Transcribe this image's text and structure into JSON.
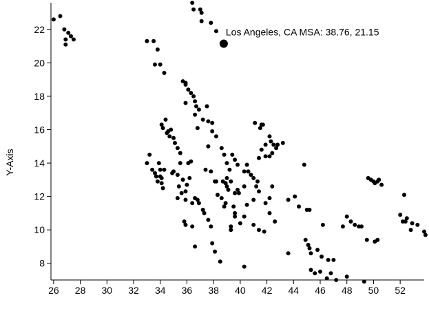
{
  "chart_data": {
    "type": "scatter",
    "ylabel": "Y-Axis",
    "xlim": [
      25.8,
      53.8
    ],
    "ylim": [
      7.0,
      23.6
    ],
    "x_ticks": [
      26,
      28,
      30,
      32,
      34,
      36,
      38,
      40,
      42,
      44,
      46,
      48,
      50,
      52
    ],
    "y_ticks": [
      8,
      10,
      12,
      14,
      16,
      18,
      20,
      22
    ],
    "x_tick_labels": [
      "26",
      "28",
      "30",
      "32",
      "34",
      "36",
      "38",
      "40",
      "42",
      "44",
      "46",
      "48",
      "50",
      "52"
    ],
    "y_tick_labels": [
      "8",
      "10",
      "12",
      "14",
      "16",
      "18",
      "20",
      "22"
    ],
    "grid": false,
    "highlight": {
      "x": 38.76,
      "y": 21.15,
      "label": "Los Angeles, CA MSA: 38.76, 21.15"
    },
    "points": [
      [
        26.0,
        22.6
      ],
      [
        26.5,
        22.8
      ],
      [
        26.8,
        22.0
      ],
      [
        26.9,
        21.4
      ],
      [
        26.9,
        21.1
      ],
      [
        27.1,
        21.8
      ],
      [
        27.3,
        21.6
      ],
      [
        27.5,
        21.4
      ],
      [
        33.0,
        21.3
      ],
      [
        33.5,
        21.3
      ],
      [
        33.8,
        20.8
      ],
      [
        33.6,
        19.9
      ],
      [
        34.0,
        19.9
      ],
      [
        34.3,
        19.4
      ],
      [
        36.4,
        23.6
      ],
      [
        36.5,
        23.2
      ],
      [
        37.0,
        23.2
      ],
      [
        37.1,
        23.0
      ],
      [
        37.1,
        22.5
      ],
      [
        37.8,
        22.4
      ],
      [
        38.2,
        21.9
      ],
      [
        35.7,
        18.9
      ],
      [
        35.9,
        18.8
      ],
      [
        35.9,
        18.7
      ],
      [
        35.9,
        17.6
      ],
      [
        36.1,
        18.4
      ],
      [
        36.3,
        18.2
      ],
      [
        36.5,
        18.0
      ],
      [
        36.6,
        17.7
      ],
      [
        36.7,
        17.4
      ],
      [
        36.6,
        16.9
      ],
      [
        36.9,
        17.2
      ],
      [
        36.8,
        16.1
      ],
      [
        37.2,
        16.6
      ],
      [
        37.5,
        17.4
      ],
      [
        37.6,
        16.5
      ],
      [
        37.9,
        16.4
      ],
      [
        37.9,
        15.9
      ],
      [
        38.2,
        15.6
      ],
      [
        34.1,
        16.3
      ],
      [
        34.2,
        16.1
      ],
      [
        34.4,
        16.6
      ],
      [
        34.5,
        15.8
      ],
      [
        34.6,
        15.9
      ],
      [
        34.7,
        15.6
      ],
      [
        34.8,
        16.0
      ],
      [
        35.0,
        15.5
      ],
      [
        35.1,
        15.2
      ],
      [
        35.3,
        14.9
      ],
      [
        35.5,
        14.6
      ],
      [
        35.5,
        14.0
      ],
      [
        36.3,
        14.1
      ],
      [
        33.0,
        14.0
      ],
      [
        33.2,
        14.5
      ],
      [
        33.4,
        13.6
      ],
      [
        33.6,
        13.4
      ],
      [
        33.7,
        13.2
      ],
      [
        33.8,
        12.9
      ],
      [
        33.9,
        14.0
      ],
      [
        34.0,
        13.6
      ],
      [
        34.0,
        13.2
      ],
      [
        34.1,
        13.1
      ],
      [
        34.1,
        12.8
      ],
      [
        34.2,
        12.5
      ],
      [
        34.3,
        13.6
      ],
      [
        34.9,
        13.4
      ],
      [
        35.0,
        13.5
      ],
      [
        35.3,
        13.3
      ],
      [
        35.4,
        12.6
      ],
      [
        35.6,
        12.2
      ],
      [
        35.7,
        13.0
      ],
      [
        35.9,
        12.3
      ],
      [
        35.3,
        11.9
      ],
      [
        35.9,
        11.8
      ],
      [
        36.0,
        12.7
      ],
      [
        36.1,
        14.0
      ],
      [
        36.2,
        13.1
      ],
      [
        36.4,
        11.6
      ],
      [
        36.6,
        11.9
      ],
      [
        36.8,
        11.8
      ],
      [
        36.9,
        11.6
      ],
      [
        37.2,
        11.2
      ],
      [
        37.3,
        11.0
      ],
      [
        37.6,
        10.6
      ],
      [
        37.8,
        10.2
      ],
      [
        35.8,
        10.5
      ],
      [
        35.9,
        10.3
      ],
      [
        36.4,
        10.2
      ],
      [
        36.6,
        9.0
      ],
      [
        37.9,
        9.2
      ],
      [
        38.1,
        8.7
      ],
      [
        38.5,
        8.1
      ],
      [
        37.6,
        15.0
      ],
      [
        38.6,
        14.9
      ],
      [
        38.8,
        14.5
      ],
      [
        39.0,
        14.0
      ],
      [
        39.2,
        13.6
      ],
      [
        39.4,
        14.5
      ],
      [
        39.6,
        14.2
      ],
      [
        39.8,
        13.9
      ],
      [
        39.0,
        13.1
      ],
      [
        38.9,
        12.8
      ],
      [
        39.3,
        12.9
      ],
      [
        39.0,
        12.6
      ],
      [
        38.7,
        12.9
      ],
      [
        38.1,
        12.9
      ],
      [
        38.6,
        11.9
      ],
      [
        38.8,
        11.4
      ],
      [
        39.1,
        12.4
      ],
      [
        39.5,
        11.4
      ],
      [
        39.6,
        11.0
      ],
      [
        39.8,
        12.4
      ],
      [
        40.3,
        12.6
      ],
      [
        40.3,
        13.5
      ],
      [
        40.5,
        13.9
      ],
      [
        40.6,
        13.5
      ],
      [
        40.8,
        13.3
      ],
      [
        41.0,
        13.1
      ],
      [
        41.2,
        12.6
      ],
      [
        41.4,
        12.3
      ],
      [
        41.0,
        11.8
      ],
      [
        41.3,
        12.9
      ],
      [
        40.5,
        11.5
      ],
      [
        40.3,
        10.8
      ],
      [
        40.0,
        10.4
      ],
      [
        39.3,
        10.0
      ],
      [
        39.3,
        10.2
      ],
      [
        39.6,
        10.8
      ],
      [
        41.0,
        10.3
      ],
      [
        41.4,
        10.0
      ],
      [
        41.8,
        9.9
      ],
      [
        41.9,
        11.6
      ],
      [
        42.2,
        11.9
      ],
      [
        42.4,
        12.6
      ],
      [
        42.2,
        11.0
      ],
      [
        42.6,
        10.5
      ],
      [
        40.3,
        7.8
      ],
      [
        37.4,
        13.6
      ],
      [
        37.8,
        13.5
      ],
      [
        38.3,
        12.1
      ],
      [
        38.2,
        12.9
      ],
      [
        38.9,
        11.6
      ],
      [
        39.6,
        12.2
      ],
      [
        39.9,
        12.2
      ],
      [
        41.1,
        16.4
      ],
      [
        41.5,
        16.1
      ],
      [
        41.6,
        16.3
      ],
      [
        41.7,
        16.3
      ],
      [
        41.9,
        15.1
      ],
      [
        42.2,
        15.6
      ],
      [
        42.3,
        15.3
      ],
      [
        42.5,
        15.1
      ],
      [
        42.8,
        15.1
      ],
      [
        43.2,
        15.2
      ],
      [
        42.4,
        14.6
      ],
      [
        42.7,
        14.9
      ],
      [
        41.6,
        14.8
      ],
      [
        41.9,
        14.4
      ],
      [
        41.4,
        14.3
      ],
      [
        42.2,
        14.4
      ],
      [
        43.6,
        11.8
      ],
      [
        44.1,
        12.0
      ],
      [
        44.4,
        11.4
      ],
      [
        45.0,
        11.2
      ],
      [
        45.2,
        11.2
      ],
      [
        44.8,
        13.9
      ],
      [
        46.2,
        10.3
      ],
      [
        44.9,
        9.4
      ],
      [
        45.2,
        8.9
      ],
      [
        45.1,
        9.1
      ],
      [
        45.3,
        8.6
      ],
      [
        45.8,
        8.8
      ],
      [
        46.1,
        8.4
      ],
      [
        46.6,
        8.2
      ],
      [
        47.0,
        8.2
      ],
      [
        45.3,
        7.6
      ],
      [
        45.6,
        7.4
      ],
      [
        46.0,
        7.5
      ],
      [
        46.5,
        7.1
      ],
      [
        46.8,
        7.4
      ],
      [
        43.6,
        8.6
      ],
      [
        47.2,
        7.0
      ],
      [
        48.0,
        7.2
      ],
      [
        49.3,
        6.9
      ],
      [
        48.0,
        10.8
      ],
      [
        48.3,
        10.5
      ],
      [
        48.6,
        10.3
      ],
      [
        48.9,
        10.2
      ],
      [
        49.1,
        10.2
      ],
      [
        47.7,
        10.2
      ],
      [
        49.5,
        9.4
      ],
      [
        50.1,
        9.3
      ],
      [
        50.3,
        9.4
      ],
      [
        49.6,
        13.1
      ],
      [
        49.8,
        13.0
      ],
      [
        50.0,
        12.9
      ],
      [
        50.1,
        12.8
      ],
      [
        50.3,
        12.9
      ],
      [
        50.4,
        13.0
      ],
      [
        50.6,
        12.7
      ],
      [
        52.0,
        10.9
      ],
      [
        52.2,
        10.5
      ],
      [
        52.4,
        10.5
      ],
      [
        52.5,
        10.7
      ],
      [
        52.8,
        10.0
      ],
      [
        52.9,
        10.4
      ],
      [
        53.3,
        10.3
      ],
      [
        53.8,
        9.9
      ],
      [
        53.9,
        9.7
      ],
      [
        52.3,
        12.1
      ]
    ]
  }
}
